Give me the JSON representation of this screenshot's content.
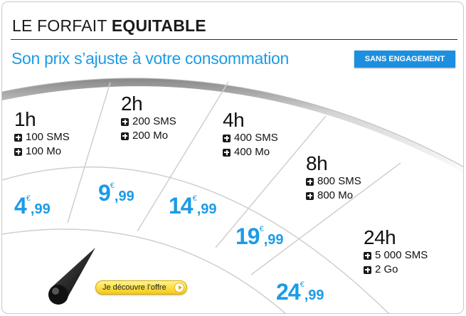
{
  "header": {
    "title_prefix": "LE FORFAIT ",
    "title_bold": "EQUITABLE",
    "subtitle": "Son prix s’ajuste à votre consommation",
    "badge": "SANS ENGAGEMENT"
  },
  "plans": [
    {
      "duration": "1h",
      "sms": "100 SMS",
      "data": "100 Mo",
      "price_int": "4",
      "currency": "€",
      "price_dec": ",99"
    },
    {
      "duration": "2h",
      "sms": "200 SMS",
      "data": "200 Mo",
      "price_int": "9",
      "currency": "€",
      "price_dec": ",99"
    },
    {
      "duration": "4h",
      "sms": "400 SMS",
      "data": "400 Mo",
      "price_int": "14",
      "currency": "€",
      "price_dec": ",99"
    },
    {
      "duration": "8h",
      "sms": "800 SMS",
      "data": "800 Mo",
      "price_int": "19",
      "currency": "€",
      "price_dec": ",99"
    },
    {
      "duration": "24h",
      "sms": "5 000 SMS",
      "data": "2 Go",
      "price_int": "24",
      "currency": "€",
      "price_dec": ",99"
    }
  ],
  "cta": {
    "label": "Je découvre l’offre"
  },
  "colors": {
    "accent_blue": "#1c9be6",
    "badge_blue": "#1c8fe0",
    "button_yellow": "#f6d533",
    "text_dark": "#111111"
  },
  "icons": {
    "feature_bullet": "plus-square-icon",
    "cta_arrow": "play-arrow-icon",
    "dial_needle": "needle-icon"
  }
}
